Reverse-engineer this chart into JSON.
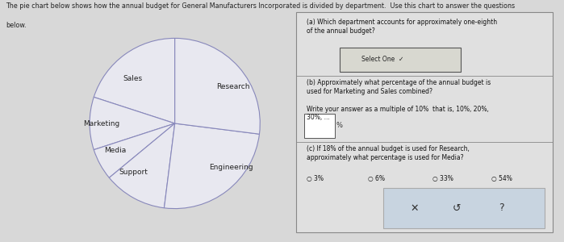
{
  "labels": [
    "Sales",
    "Marketing",
    "Media",
    "Support",
    "Engineering",
    "Research"
  ],
  "sizes": [
    20,
    10,
    6,
    12,
    25,
    27
  ],
  "pie_color": "#e8e8f0",
  "edge_color": "#8888bb",
  "text_color": "#222222",
  "background_color": "#d8d8d8",
  "panel_color": "#e0e0e0",
  "label_fontsize": 6.5,
  "startangle": 90,
  "fig_width": 6.99,
  "fig_height": 3.0,
  "title_line1": "The pie chart below shows how the annual budget for General Manufacturers Incorporated is divided by department.  Use this chart to answer the questions",
  "title_line2": "below."
}
